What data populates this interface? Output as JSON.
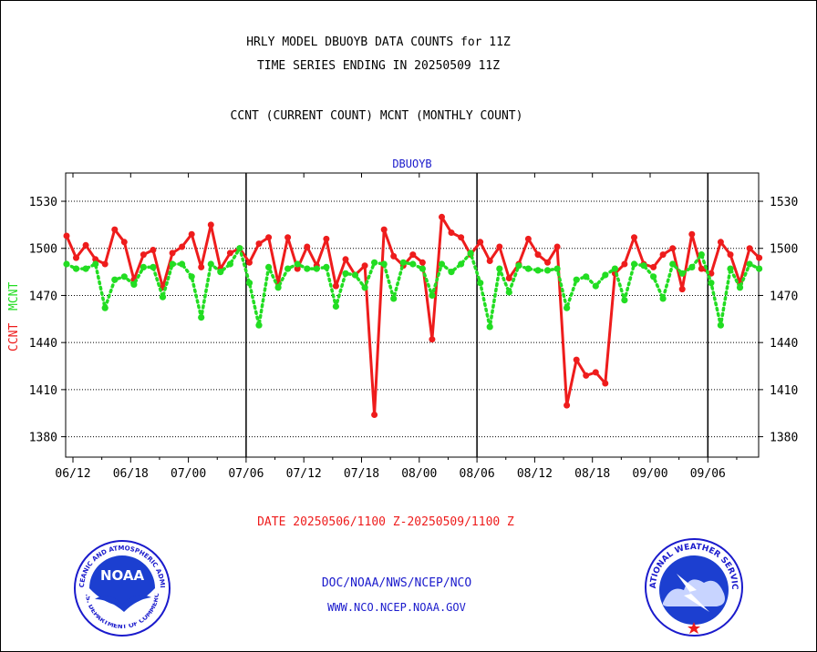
{
  "header": {
    "title_line1": "HRLY MODEL DBUOYB DATA COUNTS for 11Z",
    "title_line2": "TIME SERIES ENDING IN 20250509 11Z",
    "subtitle": "CCNT (CURRENT COUNT) MCNT (MONTHLY COUNT)"
  },
  "footer": {
    "date_range": "DATE 20250506/1100 Z-20250509/1100 Z",
    "org_path": "DOC/NOAA/NWS/NCEP/NCO",
    "website": "WWW.NCO.NCEP.NOAA.GOV"
  },
  "logos": {
    "noaa_text": "NOAA",
    "noaa_ring_top": "NATIONAL OCEANIC AND ATMOSPHERIC ADMINISTRATION",
    "noaa_ring_bottom": "U.S. DEPARTMENT OF COMMERCE",
    "nws_ring_top": "NATIONAL WEATHER SERVICE"
  },
  "colors": {
    "ccnt": "#ee1c1c",
    "mcnt": "#22dd22",
    "label_blue": "#1a1acc",
    "date_red": "#ee1c1c",
    "grid": "#000000"
  },
  "chart_data": {
    "type": "line",
    "title": "DBUOYB",
    "ylabel_ccnt": "CCNT",
    "ylabel_mcnt": "MCNT",
    "ylim": [
      1367,
      1548
    ],
    "yticks": [
      1380,
      1410,
      1440,
      1470,
      1500,
      1530
    ],
    "grid": true,
    "x_tick_labels": [
      "06/12",
      "06/18",
      "07/00",
      "07/06",
      "07/12",
      "07/18",
      "08/00",
      "08/06",
      "08/12",
      "08/18",
      "09/00",
      "09/06"
    ],
    "day_separators": [
      "07/00",
      "08/00",
      "09/00"
    ],
    "series": [
      {
        "name": "CCNT",
        "style": "solid",
        "values": [
          1508,
          1494,
          1502,
          1493,
          1490,
          1512,
          1504,
          1480,
          1496,
          1499,
          1475,
          1497,
          1501,
          1509,
          1488,
          1515,
          1487,
          1497,
          1500,
          1491,
          1503,
          1507,
          1478,
          1507,
          1487,
          1501,
          1489,
          1506,
          1476,
          1493,
          1483,
          1489,
          1394,
          1512,
          1495,
          1489,
          1496,
          1491,
          1442,
          1520,
          1510,
          1507,
          1496,
          1504,
          1492,
          1501,
          1481,
          1490,
          1506,
          1496,
          1491,
          1501,
          1400,
          1429,
          1419,
          1421,
          1414,
          1484,
          1490,
          1507,
          1490,
          1488,
          1496,
          1500,
          1474,
          1509,
          1487,
          1484,
          1504,
          1496,
          1478,
          1500,
          1494
        ]
      },
      {
        "name": "MCNT",
        "style": "dotted",
        "values": [
          1490,
          1487,
          1487,
          1490,
          1462,
          1480,
          1482,
          1477,
          1488,
          1488,
          1469,
          1490,
          1490,
          1482,
          1456,
          1490,
          1485,
          1490,
          1500,
          1478,
          1451,
          1488,
          1475,
          1487,
          1490,
          1487,
          1487,
          1488,
          1463,
          1484,
          1483,
          1475,
          1491,
          1490,
          1468,
          1491,
          1490,
          1487,
          1470,
          1490,
          1485,
          1490,
          1497,
          1478,
          1450,
          1487,
          1472,
          1489,
          1487,
          1486,
          1486,
          1487,
          1462,
          1480,
          1482,
          1476,
          1483,
          1487,
          1467,
          1490,
          1489,
          1482,
          1468,
          1490,
          1484,
          1488,
          1496,
          1478,
          1451,
          1487,
          1475,
          1490,
          1487
        ]
      }
    ]
  }
}
